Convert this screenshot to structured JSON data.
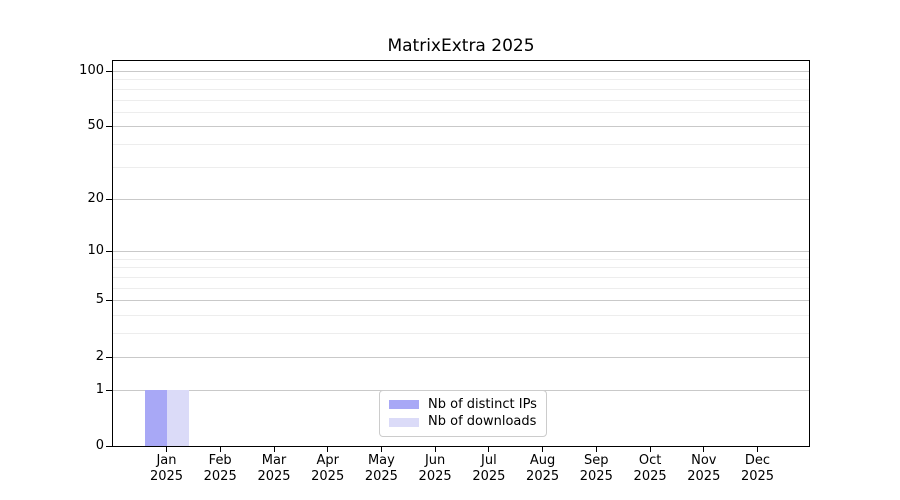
{
  "chart_data": {
    "type": "bar",
    "title": "MatrixExtra 2025",
    "categories": [
      {
        "month": "Jan",
        "year": "2025"
      },
      {
        "month": "Feb",
        "year": "2025"
      },
      {
        "month": "Mar",
        "year": "2025"
      },
      {
        "month": "Apr",
        "year": "2025"
      },
      {
        "month": "May",
        "year": "2025"
      },
      {
        "month": "Jun",
        "year": "2025"
      },
      {
        "month": "Jul",
        "year": "2025"
      },
      {
        "month": "Aug",
        "year": "2025"
      },
      {
        "month": "Sep",
        "year": "2025"
      },
      {
        "month": "Oct",
        "year": "2025"
      },
      {
        "month": "Nov",
        "year": "2025"
      },
      {
        "month": "Dec",
        "year": "2025"
      }
    ],
    "series": [
      {
        "name": "Nb of distinct IPs",
        "color": "#a8a8f6",
        "values": [
          1,
          0,
          0,
          0,
          0,
          0,
          0,
          0,
          0,
          0,
          0,
          0
        ]
      },
      {
        "name": "Nb of downloads",
        "color": "#dbdbf8",
        "values": [
          1,
          0,
          0,
          0,
          0,
          0,
          0,
          0,
          0,
          0,
          0,
          0
        ]
      }
    ],
    "y_axis": {
      "scale": "log1p",
      "ticks": [
        0,
        1,
        2,
        5,
        10,
        20,
        50,
        100
      ],
      "minor_gridlines": [
        3,
        4,
        6,
        7,
        8,
        9,
        30,
        40,
        60,
        70,
        80,
        90
      ],
      "ylim": [
        0,
        113
      ]
    },
    "xlabel": "",
    "ylabel": "",
    "grid": "horizontal",
    "legend_position": "lower center",
    "colors": {
      "major_grid": "#c9c9c9",
      "minor_grid": "#ededed",
      "spine": "#000000",
      "background": "#ffffff"
    }
  }
}
